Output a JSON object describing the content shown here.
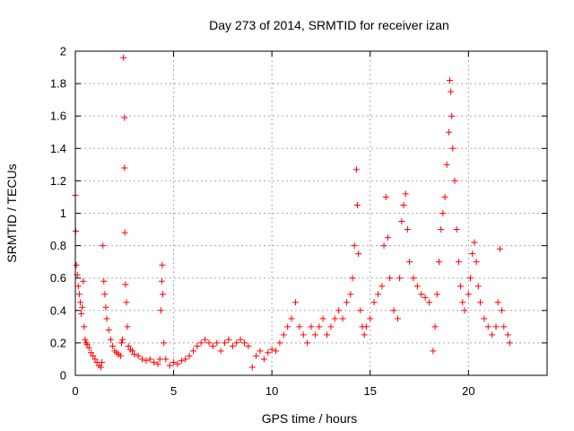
{
  "chart_data": {
    "type": "scatter",
    "title": "Day 273 of 2014, SRMTID for receiver izan",
    "xlabel": "GPS time / hours",
    "ylabel": "SRMTID / TECUs",
    "xlim": [
      0,
      24
    ],
    "ylim": [
      0,
      2
    ],
    "xticks": [
      0,
      5,
      10,
      15,
      20
    ],
    "yticks": [
      0,
      0.2,
      0.4,
      0.6,
      0.8,
      1,
      1.2,
      1.4,
      1.6,
      1.8,
      2
    ],
    "xtick_labels": [
      "0",
      "5",
      "10",
      "15",
      "20"
    ],
    "ytick_labels": [
      "0",
      "0.2",
      "0.4",
      "0.6",
      "0.8",
      "1",
      "1.2",
      "1.4",
      "1.6",
      "1.8",
      "2"
    ],
    "grid": true,
    "marker": "+",
    "color": "#ff0000",
    "series": [
      {
        "name": "SRMTID",
        "points": [
          [
            0.0,
            1.11
          ],
          [
            0.02,
            0.89
          ],
          [
            0.05,
            0.68
          ],
          [
            0.1,
            0.62
          ],
          [
            0.15,
            0.55
          ],
          [
            0.2,
            0.5
          ],
          [
            0.25,
            0.45
          ],
          [
            0.3,
            0.38
          ],
          [
            0.35,
            0.42
          ],
          [
            0.4,
            0.58
          ],
          [
            0.45,
            0.3
          ],
          [
            0.5,
            0.22
          ],
          [
            0.55,
            0.2
          ],
          [
            0.6,
            0.19
          ],
          [
            0.7,
            0.17
          ],
          [
            0.8,
            0.14
          ],
          [
            0.9,
            0.12
          ],
          [
            1.0,
            0.1
          ],
          [
            1.1,
            0.08
          ],
          [
            1.2,
            0.06
          ],
          [
            1.3,
            0.05
          ],
          [
            1.35,
            0.08
          ],
          [
            1.4,
            0.8
          ],
          [
            1.45,
            0.58
          ],
          [
            1.5,
            0.5
          ],
          [
            1.55,
            0.42
          ],
          [
            1.6,
            0.35
          ],
          [
            1.7,
            0.28
          ],
          [
            1.8,
            0.22
          ],
          [
            1.9,
            0.18
          ],
          [
            2.0,
            0.15
          ],
          [
            2.1,
            0.14
          ],
          [
            2.2,
            0.13
          ],
          [
            2.3,
            0.12
          ],
          [
            2.35,
            0.2
          ],
          [
            2.4,
            0.22
          ],
          [
            2.45,
            1.96
          ],
          [
            2.5,
            1.59
          ],
          [
            2.5,
            1.28
          ],
          [
            2.52,
            0.88
          ],
          [
            2.55,
            0.56
          ],
          [
            2.6,
            0.45
          ],
          [
            2.65,
            0.3
          ],
          [
            2.7,
            0.18
          ],
          [
            2.8,
            0.16
          ],
          [
            2.9,
            0.15
          ],
          [
            3.0,
            0.13
          ],
          [
            3.2,
            0.12
          ],
          [
            3.4,
            0.1
          ],
          [
            3.6,
            0.09
          ],
          [
            3.8,
            0.1
          ],
          [
            4.0,
            0.08
          ],
          [
            4.2,
            0.07
          ],
          [
            4.3,
            0.1
          ],
          [
            4.35,
            0.4
          ],
          [
            4.4,
            0.58
          ],
          [
            4.42,
            0.68
          ],
          [
            4.45,
            0.5
          ],
          [
            4.5,
            0.2
          ],
          [
            4.6,
            0.1
          ],
          [
            4.8,
            0.06
          ],
          [
            5.0,
            0.08
          ],
          [
            5.2,
            0.07
          ],
          [
            5.4,
            0.09
          ],
          [
            5.6,
            0.1
          ],
          [
            5.8,
            0.12
          ],
          [
            6.0,
            0.15
          ],
          [
            6.2,
            0.18
          ],
          [
            6.4,
            0.2
          ],
          [
            6.6,
            0.22
          ],
          [
            6.8,
            0.2
          ],
          [
            7.0,
            0.18
          ],
          [
            7.2,
            0.2
          ],
          [
            7.4,
            0.15
          ],
          [
            7.6,
            0.2
          ],
          [
            7.8,
            0.22
          ],
          [
            8.0,
            0.18
          ],
          [
            8.2,
            0.2
          ],
          [
            8.4,
            0.22
          ],
          [
            8.6,
            0.2
          ],
          [
            8.8,
            0.18
          ],
          [
            9.0,
            0.05
          ],
          [
            9.2,
            0.12
          ],
          [
            9.4,
            0.15
          ],
          [
            9.6,
            0.1
          ],
          [
            9.8,
            0.14
          ],
          [
            10.0,
            0.16
          ],
          [
            10.2,
            0.15
          ],
          [
            10.4,
            0.2
          ],
          [
            10.6,
            0.25
          ],
          [
            10.8,
            0.3
          ],
          [
            11.0,
            0.35
          ],
          [
            11.2,
            0.45
          ],
          [
            11.4,
            0.3
          ],
          [
            11.6,
            0.25
          ],
          [
            11.8,
            0.2
          ],
          [
            12.0,
            0.3
          ],
          [
            12.2,
            0.25
          ],
          [
            12.4,
            0.3
          ],
          [
            12.6,
            0.35
          ],
          [
            12.8,
            0.25
          ],
          [
            13.0,
            0.3
          ],
          [
            13.2,
            0.35
          ],
          [
            13.4,
            0.4
          ],
          [
            13.6,
            0.35
          ],
          [
            13.8,
            0.45
          ],
          [
            14.0,
            0.5
          ],
          [
            14.1,
            0.6
          ],
          [
            14.2,
            0.8
          ],
          [
            14.3,
            1.27
          ],
          [
            14.35,
            1.05
          ],
          [
            14.4,
            0.75
          ],
          [
            14.5,
            0.4
          ],
          [
            14.6,
            0.3
          ],
          [
            14.7,
            0.25
          ],
          [
            14.8,
            0.3
          ],
          [
            15.0,
            0.35
          ],
          [
            15.2,
            0.45
          ],
          [
            15.4,
            0.5
          ],
          [
            15.6,
            0.55
          ],
          [
            15.7,
            0.8
          ],
          [
            15.8,
            1.1
          ],
          [
            15.9,
            0.85
          ],
          [
            16.0,
            0.6
          ],
          [
            16.2,
            0.4
          ],
          [
            16.4,
            0.35
          ],
          [
            16.5,
            0.6
          ],
          [
            16.6,
            0.95
          ],
          [
            16.7,
            1.05
          ],
          [
            16.8,
            1.12
          ],
          [
            16.9,
            0.9
          ],
          [
            17.0,
            0.7
          ],
          [
            17.2,
            0.6
          ],
          [
            17.4,
            0.55
          ],
          [
            17.6,
            0.5
          ],
          [
            17.8,
            0.48
          ],
          [
            18.0,
            0.45
          ],
          [
            18.2,
            0.15
          ],
          [
            18.3,
            0.3
          ],
          [
            18.4,
            0.5
          ],
          [
            18.5,
            0.7
          ],
          [
            18.6,
            0.9
          ],
          [
            18.7,
            1.0
          ],
          [
            18.8,
            1.1
          ],
          [
            18.9,
            1.3
          ],
          [
            19.0,
            1.5
          ],
          [
            19.05,
            1.82
          ],
          [
            19.1,
            1.75
          ],
          [
            19.15,
            1.6
          ],
          [
            19.2,
            1.4
          ],
          [
            19.3,
            1.2
          ],
          [
            19.4,
            0.9
          ],
          [
            19.5,
            0.7
          ],
          [
            19.6,
            0.55
          ],
          [
            19.7,
            0.45
          ],
          [
            19.8,
            0.4
          ],
          [
            20.0,
            0.5
          ],
          [
            20.1,
            0.6
          ],
          [
            20.2,
            0.75
          ],
          [
            20.3,
            0.82
          ],
          [
            20.4,
            0.7
          ],
          [
            20.5,
            0.55
          ],
          [
            20.6,
            0.45
          ],
          [
            20.8,
            0.35
          ],
          [
            21.0,
            0.3
          ],
          [
            21.2,
            0.25
          ],
          [
            21.4,
            0.3
          ],
          [
            21.5,
            0.45
          ],
          [
            21.6,
            0.78
          ],
          [
            21.7,
            0.4
          ],
          [
            21.8,
            0.3
          ],
          [
            22.0,
            0.25
          ],
          [
            22.1,
            0.2
          ]
        ]
      }
    ]
  }
}
